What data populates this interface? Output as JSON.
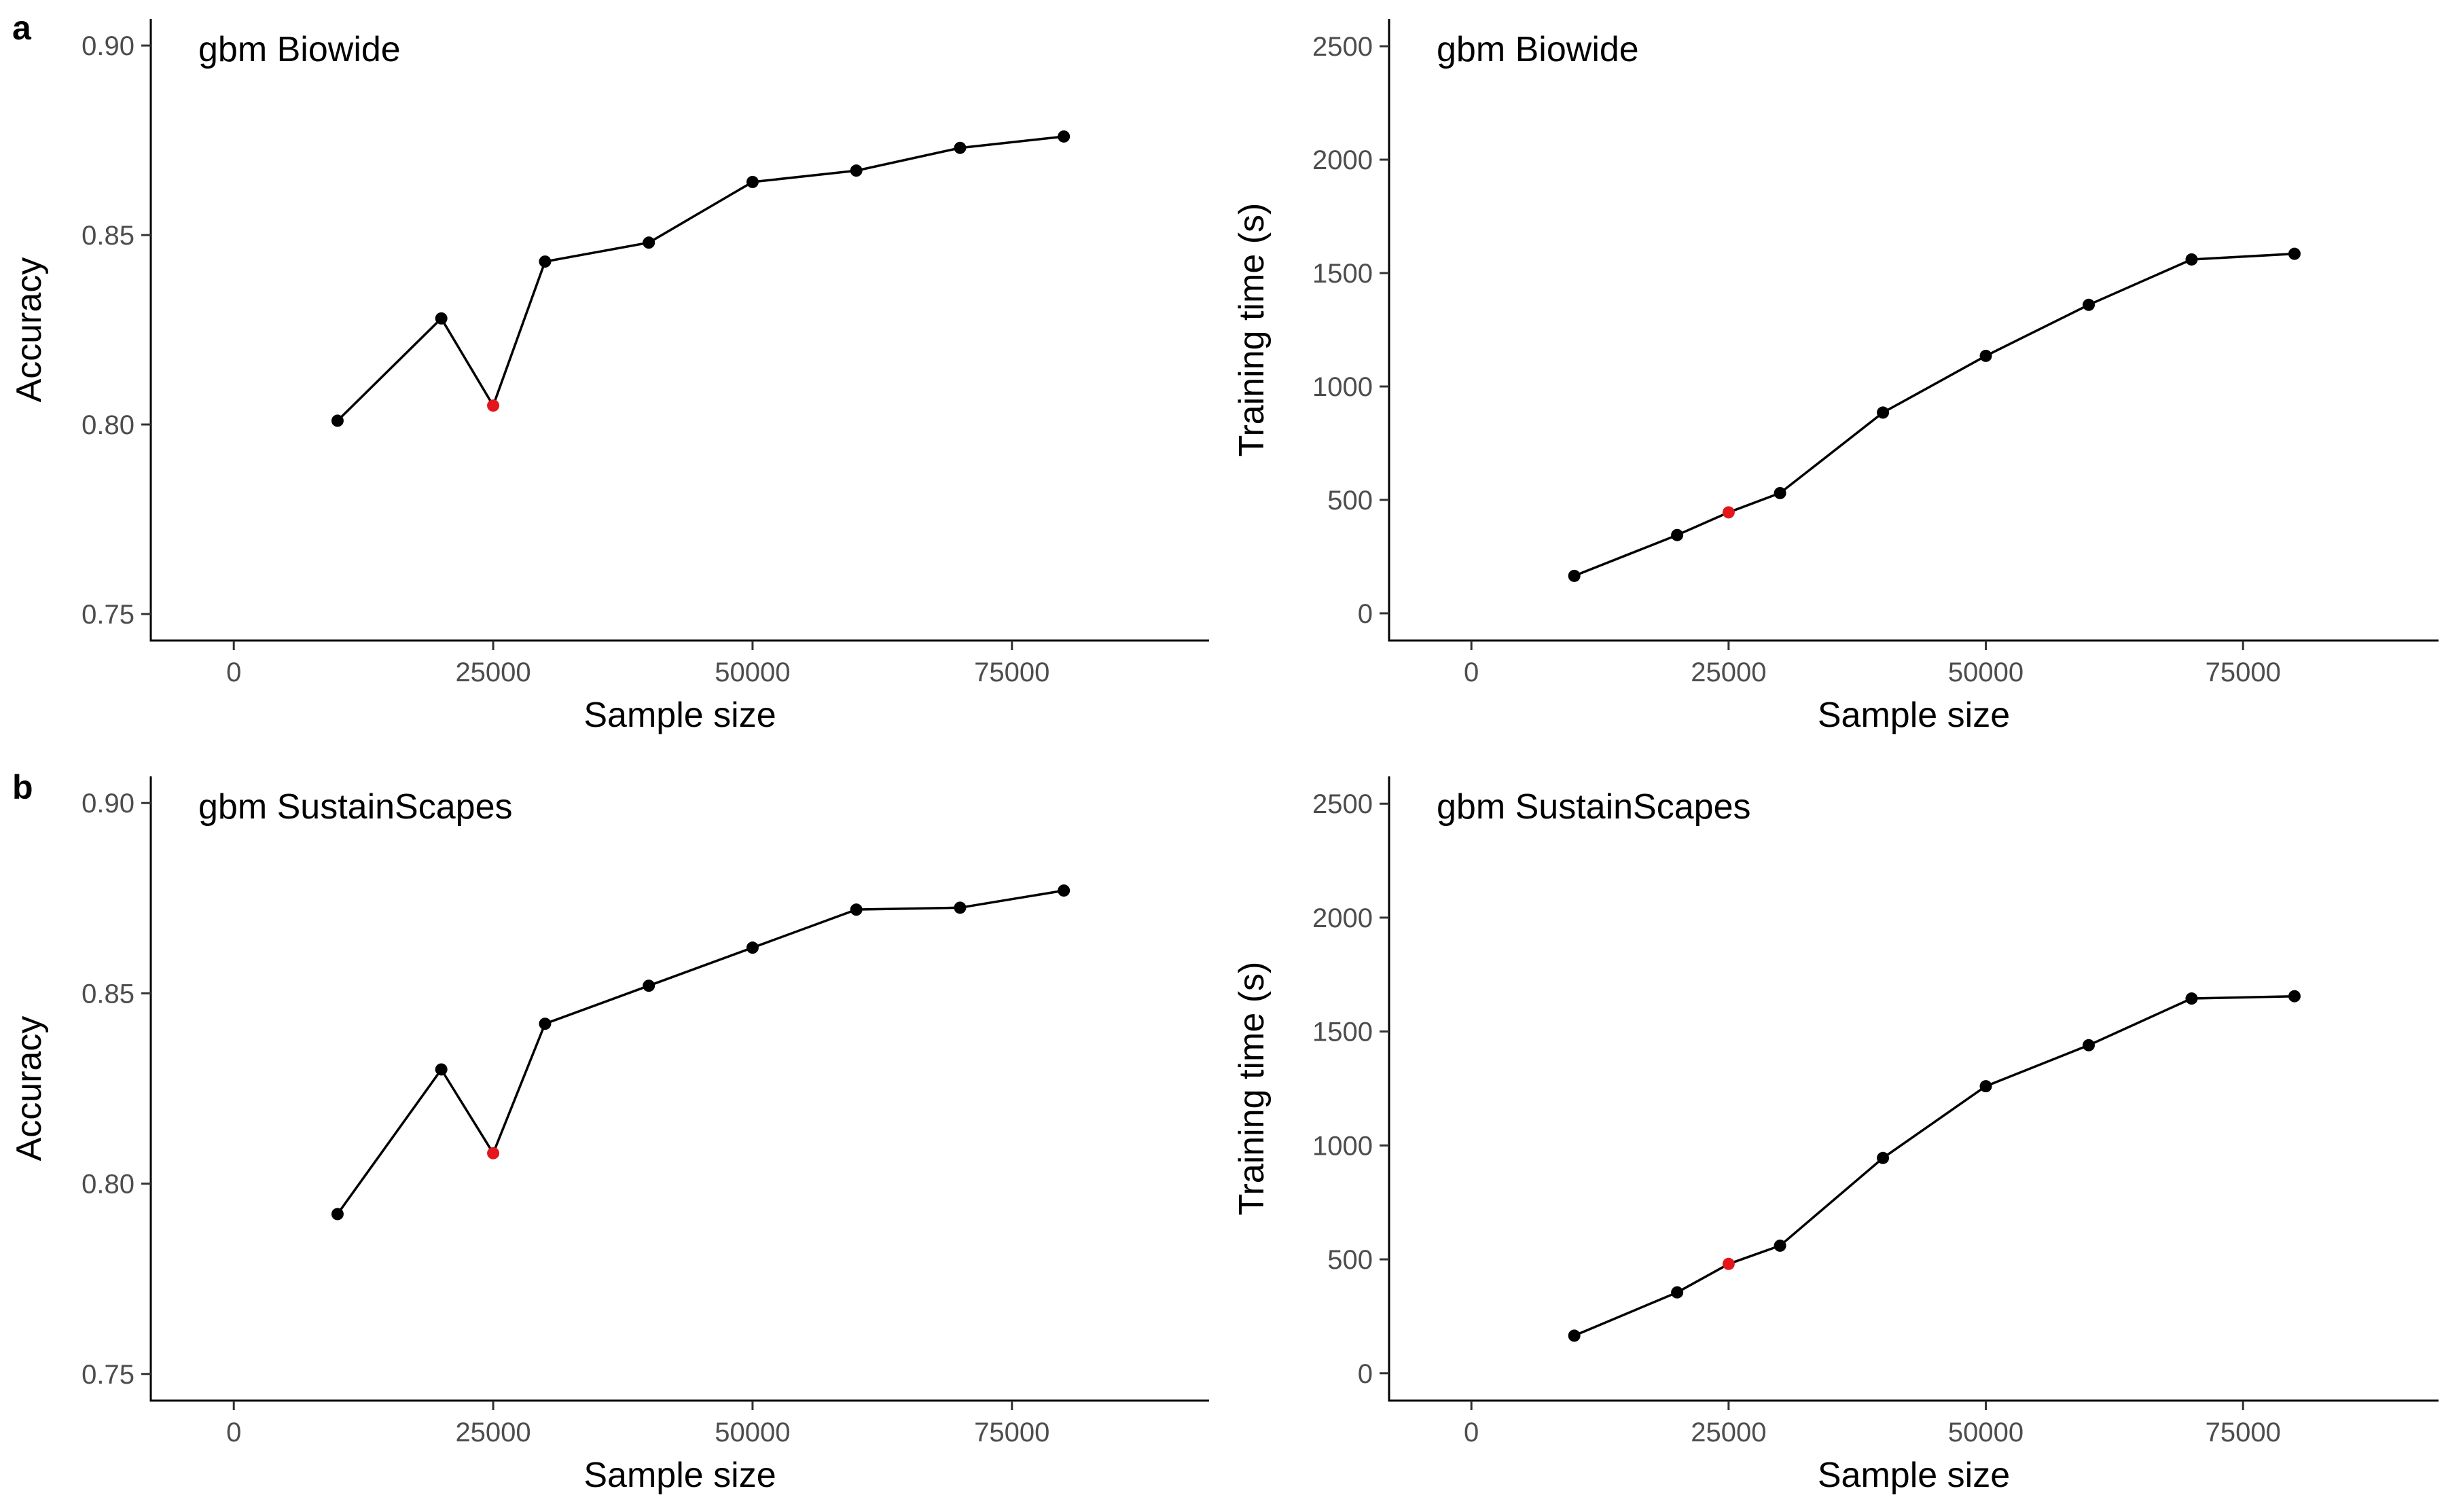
{
  "panel_labels": [
    "a",
    "b"
  ],
  "chart_data": [
    {
      "type": "line",
      "title": "gbm Biowide",
      "xlabel": "Sample size",
      "ylabel": "Accuracy",
      "xlim": [
        -8000,
        94000
      ],
      "ylim": [
        0.743,
        0.907
      ],
      "xticks": [
        "0",
        "25000",
        "50000",
        "75000"
      ],
      "yticks": [
        "0.75",
        "0.80",
        "0.85",
        "0.90"
      ],
      "grid": false,
      "x": [
        10000,
        20000,
        25000,
        30000,
        40000,
        50000,
        60000,
        70000,
        80000
      ],
      "y": [
        0.801,
        0.828,
        0.805,
        0.843,
        0.848,
        0.864,
        0.867,
        0.873,
        0.876
      ],
      "highlight_x": 25000,
      "line_color": "#000000",
      "highlight_color": "#e3161c"
    },
    {
      "type": "line",
      "title": "gbm Biowide",
      "xlabel": "Sample size",
      "ylabel": "Training time (s)",
      "xlim": [
        -8000,
        94000
      ],
      "ylim": [
        -120,
        2620
      ],
      "xticks": [
        "0",
        "25000",
        "50000",
        "75000"
      ],
      "yticks": [
        "0",
        "500",
        "1000",
        "1500",
        "2000",
        "2500"
      ],
      "grid": false,
      "x": [
        10000,
        20000,
        25000,
        30000,
        40000,
        50000,
        60000,
        70000,
        80000
      ],
      "y": [
        165,
        345,
        445,
        530,
        885,
        1135,
        1360,
        1560,
        1585
      ],
      "highlight_x": 25000,
      "line_color": "#000000",
      "highlight_color": "#e3161c"
    },
    {
      "type": "line",
      "title": "gbm SustainScapes",
      "xlabel": "Sample size",
      "ylabel": "Accuracy",
      "xlim": [
        -8000,
        94000
      ],
      "ylim": [
        0.743,
        0.907
      ],
      "xticks": [
        "0",
        "25000",
        "50000",
        "75000"
      ],
      "yticks": [
        "0.75",
        "0.80",
        "0.85",
        "0.90"
      ],
      "grid": false,
      "x": [
        10000,
        20000,
        25000,
        30000,
        40000,
        50000,
        60000,
        70000,
        80000
      ],
      "y": [
        0.792,
        0.83,
        0.808,
        0.842,
        0.852,
        0.862,
        0.872,
        0.8725,
        0.877
      ],
      "highlight_x": 25000,
      "line_color": "#000000",
      "highlight_color": "#e3161c"
    },
    {
      "type": "line",
      "title": "gbm SustainScapes",
      "xlabel": "Sample size",
      "ylabel": "Training time (s)",
      "xlim": [
        -8000,
        94000
      ],
      "ylim": [
        -120,
        2620
      ],
      "xticks": [
        "0",
        "25000",
        "50000",
        "75000"
      ],
      "yticks": [
        "0",
        "500",
        "1000",
        "1500",
        "2000",
        "2500"
      ],
      "grid": false,
      "x": [
        10000,
        20000,
        25000,
        30000,
        40000,
        50000,
        60000,
        70000,
        80000
      ],
      "y": [
        165,
        355,
        480,
        560,
        945,
        1260,
        1440,
        1645,
        1655
      ],
      "highlight_x": 25000,
      "line_color": "#000000",
      "highlight_color": "#e3161c"
    }
  ]
}
